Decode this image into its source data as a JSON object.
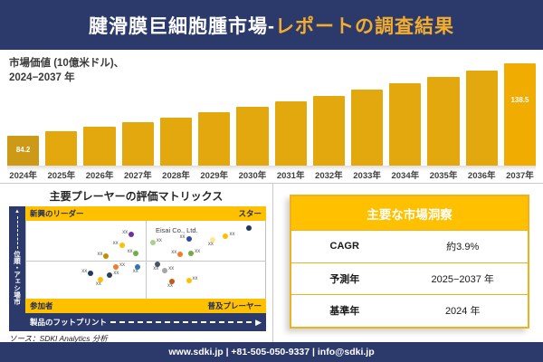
{
  "header": {
    "title_main": "腱滑膜巨細胞腫市場-",
    "title_accent": "レポートの調査結果"
  },
  "chart_data": {
    "type": "bar",
    "title_line1": "市場価値 (10億米ドル)、",
    "title_line2": "2024−2037 年",
    "categories": [
      "2024年",
      "2025年",
      "2026年",
      "2027年",
      "2028年",
      "2029年",
      "2030年",
      "2031年",
      "2032年",
      "2033年",
      "2034年",
      "2035年",
      "2036年",
      "2037年"
    ],
    "values": [
      84.2,
      87.5,
      90.9,
      94.4,
      98.1,
      101.9,
      105.9,
      110.1,
      114.4,
      118.8,
      123.5,
      128.3,
      133.3,
      138.5
    ],
    "shown_data_labels": {
      "first": "84.2",
      "last": "138.5"
    },
    "ylabel": "市場価値 (10億米ドル)",
    "xlabel": "年",
    "ylim": [
      80,
      140
    ],
    "grid": false,
    "bar_color": "#E2A80E",
    "bar_color_first": "#CC9A16",
    "bar_color_last": "#F0AC00"
  },
  "matrix": {
    "section_title": "主要プレーヤーの評価マトリックス",
    "quadrants": {
      "top_left": "新興のリーダー",
      "top_right": "スター",
      "bottom_left": "参加者",
      "bottom_right": "普及プレーヤー"
    },
    "x_axis_label": "製品のフットプリント",
    "y_axis_label": "市場シェア・順位",
    "featured_company": "Eisai Co., Ltd.",
    "point_placeholder": "xx",
    "points": [
      {
        "x": 44,
        "y": 17,
        "color": "#7030A0",
        "lp": "l"
      },
      {
        "x": 40,
        "y": 31,
        "color": "#FFC000",
        "lp": "l"
      },
      {
        "x": 33.5,
        "y": 45,
        "color": "#BF8F00",
        "lp": "l"
      },
      {
        "x": 46,
        "y": 42,
        "color": "#70AD47",
        "lp": "l"
      },
      {
        "x": 53,
        "y": 28,
        "color": "#A9D18E",
        "lp": "r"
      },
      {
        "x": 68,
        "y": 23,
        "color": "#2F4B9E",
        "lp": "l",
        "company": true
      },
      {
        "x": 78,
        "y": 24,
        "color": "#FFE699",
        "lp": "b"
      },
      {
        "x": 83.5,
        "y": 20,
        "color": "#FFC000",
        "lp": "r"
      },
      {
        "x": 93,
        "y": 9,
        "color": "#1F3864",
        "lp": "none"
      },
      {
        "x": 64.5,
        "y": 43,
        "color": "#ED7D31",
        "lp": "l"
      },
      {
        "x": 69,
        "y": 42,
        "color": "#70AD47",
        "lp": "r"
      },
      {
        "x": 37.5,
        "y": 59,
        "color": "#ED7D31",
        "lp": "r"
      },
      {
        "x": 46.5,
        "y": 59,
        "color": "#2E75B6",
        "lp": "b"
      },
      {
        "x": 27,
        "y": 67,
        "color": "#203864",
        "lp": "l"
      },
      {
        "x": 35,
        "y": 70,
        "color": "#333F50",
        "lp": "r"
      },
      {
        "x": 31,
        "y": 76,
        "color": "#FFC000",
        "lp": "b"
      },
      {
        "x": 55,
        "y": 56,
        "color": "#44546A",
        "lp": "b"
      },
      {
        "x": 58,
        "y": 64,
        "color": "#A6A6A6",
        "lp": "r"
      },
      {
        "x": 61,
        "y": 78,
        "color": "#C55A11",
        "lp": "b"
      },
      {
        "x": 68,
        "y": 77,
        "color": "#FFC000",
        "lp": "r"
      }
    ]
  },
  "insights": {
    "title": "主要な市場洞察",
    "rows": [
      {
        "label": "CAGR",
        "value": "約3.9%"
      },
      {
        "label": "予測年",
        "value": "2025−2037 年"
      },
      {
        "label": "基準年",
        "value": "2024 年"
      }
    ]
  },
  "source": "ソース：SDKI Analytics 分析",
  "footer": "www.sdki.jp | +81-505-050-9337 | info@sdki.jp",
  "colors": {
    "navy": "#2C3A6B",
    "gold": "#FFC000",
    "title_accent": "#F2AC2E",
    "bar_gold": "#E2A80E"
  }
}
